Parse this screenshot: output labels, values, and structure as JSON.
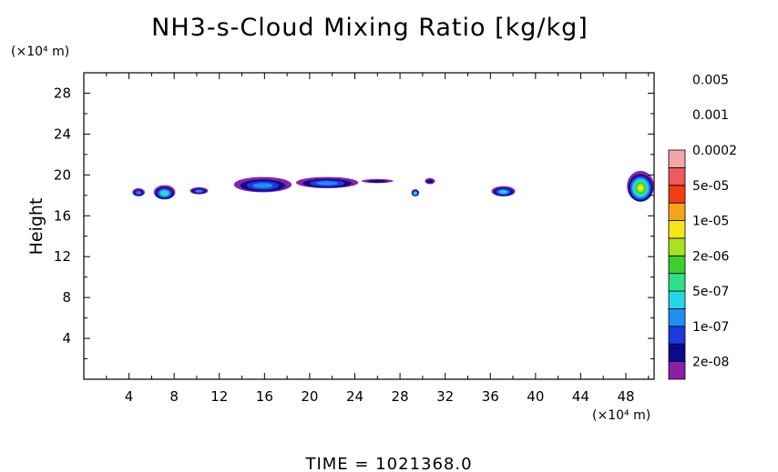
{
  "chart_data": {
    "type": "heatmap",
    "title": "NH3-s-Cloud Mixing Ratio [kg/kg]",
    "ylabel": "Height",
    "xlabel": "",
    "x_unit": "(×10⁴ m)",
    "y_unit": "(×10⁴ m)",
    "xlim": [
      0,
      50.5
    ],
    "ylim": [
      0,
      30
    ],
    "x_ticks": [
      "4",
      "8",
      "12",
      "16",
      "20",
      "24",
      "28",
      "32",
      "36",
      "40",
      "44",
      "48"
    ],
    "y_ticks": [
      "4",
      "8",
      "12",
      "16",
      "20",
      "24",
      "28"
    ],
    "time_label": "TIME = 1021368.0",
    "colorbar": {
      "labels": [
        "0.005",
        "0.001",
        "0.0002",
        "5e-05",
        "1e-05",
        "2e-06",
        "5e-07",
        "1e-07",
        "2e-08"
      ],
      "colors": [
        "#8b1fa8",
        "#0a0a8c",
        "#1a3be0",
        "#1e8ef2",
        "#22d8e8",
        "#2fe08a",
        "#3ccf2c",
        "#a8e21e",
        "#f4e61a",
        "#f6a31a",
        "#f23c14",
        "#f05a5a",
        "#f4a6a6"
      ]
    },
    "clouds": [
      {
        "x": [
          4.3,
          5.4
        ],
        "y": [
          17.9,
          18.7
        ],
        "level": 3
      },
      {
        "x": [
          6.2,
          8.1
        ],
        "y": [
          17.6,
          19.0
        ],
        "level": 5
      },
      {
        "x": [
          9.4,
          11.0
        ],
        "y": [
          18.1,
          18.8
        ],
        "level": 3
      },
      {
        "x": [
          13.3,
          18.4
        ],
        "y": [
          18.3,
          19.8
        ],
        "level": 3
      },
      {
        "x": [
          18.8,
          24.3
        ],
        "y": [
          18.7,
          19.8
        ],
        "level": 3
      },
      {
        "x": [
          24.6,
          27.4
        ],
        "y": [
          19.2,
          19.6
        ],
        "level": 1
      },
      {
        "x": [
          29.0,
          29.7
        ],
        "y": [
          17.9,
          18.6
        ],
        "level": 5
      },
      {
        "x": [
          30.2,
          31.1
        ],
        "y": [
          19.1,
          19.7
        ],
        "level": 1
      },
      {
        "x": [
          36.1,
          38.2
        ],
        "y": [
          17.9,
          18.9
        ],
        "level": 4
      },
      {
        "x": [
          48.1,
          50.5
        ],
        "y": [
          17.4,
          20.4
        ],
        "level": 8
      }
    ]
  }
}
